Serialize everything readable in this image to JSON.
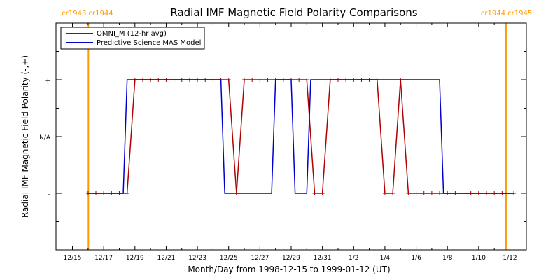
{
  "chart_data": {
    "type": "line",
    "title": "Radial IMF Magnetic Field Polarity Comparisons",
    "xlabel": "Month/Day from 1998-12-15 to 1999-01-12 (UT)",
    "ylabel": "Radial IMF Magnetic Field Polarity (-,+)",
    "xlim": [
      "1998-12-15",
      "1999-01-12"
    ],
    "ylim": [
      -2,
      2
    ],
    "x_ticks": [
      {
        "date": "1998-12-15",
        "label": "12/15"
      },
      {
        "date": "1998-12-17",
        "label": "12/17"
      },
      {
        "date": "1998-12-19",
        "label": "12/19"
      },
      {
        "date": "1998-12-21",
        "label": "12/21"
      },
      {
        "date": "1998-12-23",
        "label": "12/23"
      },
      {
        "date": "1998-12-25",
        "label": "12/25"
      },
      {
        "date": "1998-12-27",
        "label": "12/27"
      },
      {
        "date": "1998-12-29",
        "label": "12/29"
      },
      {
        "date": "1998-12-31",
        "label": "12/31"
      },
      {
        "date": "1999-01-02",
        "label": "1/2"
      },
      {
        "date": "1999-01-04",
        "label": "1/4"
      },
      {
        "date": "1999-01-06",
        "label": "1/6"
      },
      {
        "date": "1999-01-08",
        "label": "1/8"
      },
      {
        "date": "1999-01-10",
        "label": "1/10"
      },
      {
        "date": "1999-01-12",
        "label": "1/12"
      }
    ],
    "y_ticks": [
      {
        "value": 1,
        "label": "+"
      },
      {
        "value": 0,
        "label": "N/A"
      },
      {
        "value": -1,
        "label": "-"
      }
    ],
    "carrington_markers": [
      {
        "date": "1998-12-16T00:30",
        "label": "cr1943 cr1944"
      },
      {
        "date": "1999-01-11T18:00",
        "label": "cr1944 cr1945"
      }
    ],
    "legend_position": "top-left",
    "series": [
      {
        "name": "OMNI_M (12-hr avg)",
        "color": "#b00000",
        "marker": "plus",
        "points": [
          [
            "1998-12-16T00:00",
            -1
          ],
          [
            "1998-12-16T12:00",
            -1
          ],
          [
            "1998-12-17T00:00",
            -1
          ],
          [
            "1998-12-17T12:00",
            -1
          ],
          [
            "1998-12-18T00:00",
            -1
          ],
          [
            "1998-12-18T12:00",
            -1
          ],
          [
            "1998-12-19T00:00",
            1
          ],
          [
            "1998-12-19T12:00",
            1
          ],
          [
            "1998-12-20T00:00",
            1
          ],
          [
            "1998-12-20T12:00",
            1
          ],
          [
            "1998-12-21T00:00",
            1
          ],
          [
            "1998-12-21T12:00",
            1
          ],
          [
            "1998-12-22T00:00",
            1
          ],
          [
            "1998-12-22T12:00",
            1
          ],
          [
            "1998-12-23T00:00",
            1
          ],
          [
            "1998-12-23T12:00",
            1
          ],
          [
            "1998-12-24T00:00",
            1
          ],
          [
            "1998-12-24T12:00",
            1
          ],
          [
            "1998-12-25T00:00",
            1
          ],
          [
            "1998-12-25T12:00",
            -1
          ],
          [
            "1998-12-26T00:00",
            1
          ],
          [
            "1998-12-26T12:00",
            1
          ],
          [
            "1998-12-27T00:00",
            1
          ],
          [
            "1998-12-27T12:00",
            1
          ],
          [
            "1998-12-28T00:00",
            1
          ],
          [
            "1998-12-28T12:00",
            1
          ],
          [
            "1998-12-29T00:00",
            1
          ],
          [
            "1998-12-29T12:00",
            1
          ],
          [
            "1998-12-30T00:00",
            1
          ],
          [
            "1998-12-30T12:00",
            -1
          ],
          [
            "1998-12-31T00:00",
            -1
          ],
          [
            "1998-12-31T12:00",
            1
          ],
          [
            "1999-01-01T00:00",
            1
          ],
          [
            "1999-01-01T12:00",
            1
          ],
          [
            "1999-01-02T00:00",
            1
          ],
          [
            "1999-01-02T12:00",
            1
          ],
          [
            "1999-01-03T00:00",
            1
          ],
          [
            "1999-01-03T12:00",
            1
          ],
          [
            "1999-01-04T00:00",
            -1
          ],
          [
            "1999-01-04T12:00",
            -1
          ],
          [
            "1999-01-05T00:00",
            1
          ],
          [
            "1999-01-05T12:00",
            -1
          ],
          [
            "1999-01-06T00:00",
            -1
          ],
          [
            "1999-01-06T12:00",
            -1
          ],
          [
            "1999-01-07T00:00",
            -1
          ],
          [
            "1999-01-07T12:00",
            -1
          ],
          [
            "1999-01-08T00:00",
            -1
          ],
          [
            "1999-01-08T12:00",
            -1
          ],
          [
            "1999-01-09T00:00",
            -1
          ],
          [
            "1999-01-09T12:00",
            -1
          ],
          [
            "1999-01-10T00:00",
            -1
          ],
          [
            "1999-01-10T12:00",
            -1
          ],
          [
            "1999-01-11T00:00",
            -1
          ],
          [
            "1999-01-11T12:00",
            -1
          ],
          [
            "1999-01-12T00:00",
            -1
          ],
          [
            "1999-01-12T06:00",
            -1
          ]
        ]
      },
      {
        "name": "Predictive Science MAS Model",
        "color": "#0000cc",
        "points": [
          [
            "1998-12-16T00:00",
            -1
          ],
          [
            "1998-12-18T06:00",
            -1
          ],
          [
            "1998-12-18T12:00",
            1
          ],
          [
            "1998-12-24T12:00",
            1
          ],
          [
            "1998-12-24T18:00",
            -1
          ],
          [
            "1998-12-27T18:00",
            -1
          ],
          [
            "1998-12-28T00:00",
            1
          ],
          [
            "1998-12-29T00:00",
            1
          ],
          [
            "1998-12-29T06:00",
            -1
          ],
          [
            "1998-12-30T00:00",
            -1
          ],
          [
            "1998-12-30T06:00",
            1
          ],
          [
            "1999-01-07T12:00",
            1
          ],
          [
            "1999-01-07T18:00",
            -1
          ],
          [
            "1999-01-12T06:00",
            -1
          ]
        ]
      }
    ]
  }
}
